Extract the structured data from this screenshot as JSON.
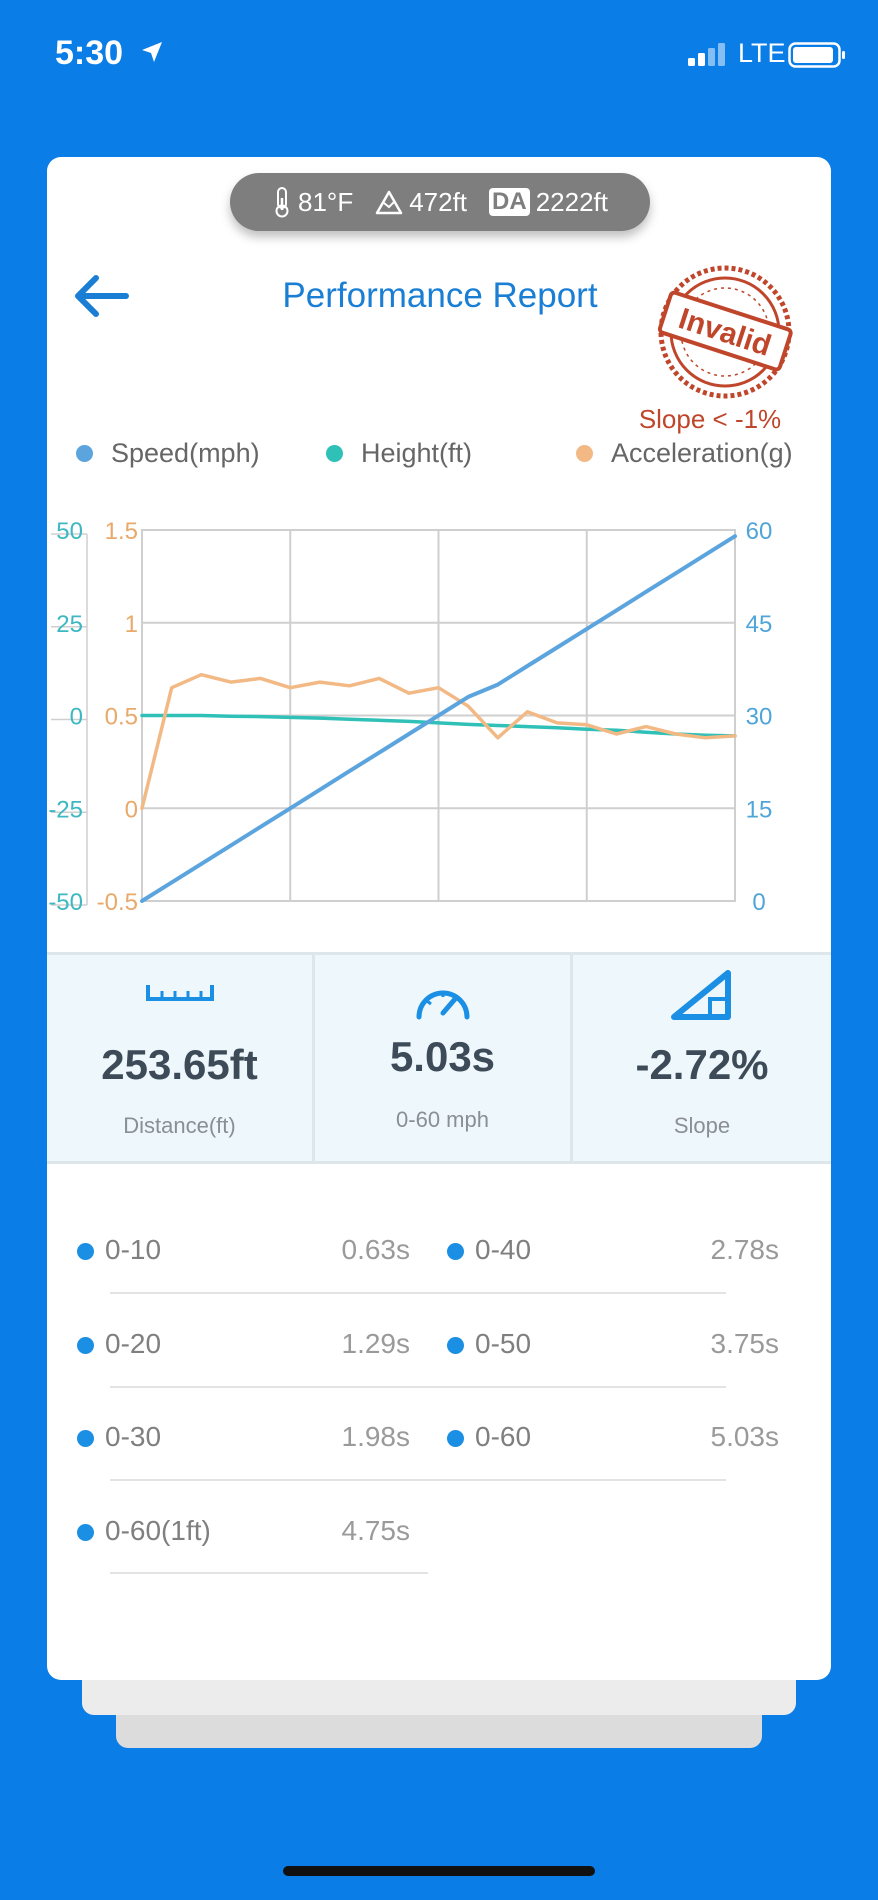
{
  "status_bar": {
    "time": "5:30",
    "network": "LTE"
  },
  "conditions": {
    "temperature": "81°F",
    "altitude": "472ft",
    "da_label": "DA",
    "density_altitude": "2222ft"
  },
  "header": {
    "title": "Performance Report",
    "stamp_text": "Invalid",
    "warning": "Slope < -1%"
  },
  "legend": [
    {
      "label": "Speed(mph)",
      "color": "#5ba4de"
    },
    {
      "label": "Height(ft)",
      "color": "#2fc0b8"
    },
    {
      "label": "Acceleration(g)",
      "color": "#f2b985"
    }
  ],
  "chart_data": {
    "type": "line",
    "x": [
      0,
      0.25,
      0.5,
      0.75,
      1.0,
      1.25,
      1.5,
      1.75,
      2.0,
      2.25,
      2.5,
      2.75,
      3.0,
      3.25,
      3.5,
      3.75,
      4.0,
      4.25,
      4.5,
      4.75,
      5.0
    ],
    "axes": {
      "height_left": {
        "ticks": [
          "50",
          "25",
          "0",
          "-25",
          "-50"
        ],
        "range": [
          -50,
          50
        ],
        "color": "#3db8c2"
      },
      "acceleration_left": {
        "ticks": [
          "1.5",
          "1",
          "0.5",
          "0",
          "-0.5"
        ],
        "range": [
          -0.5,
          1.5
        ],
        "color": "#e8a96a"
      },
      "speed_right": {
        "ticks": [
          "60",
          "45",
          "30",
          "15",
          "0"
        ],
        "range": [
          0,
          60
        ],
        "color": "#4fa5d8"
      }
    },
    "grid": true,
    "series": [
      {
        "name": "Speed(mph)",
        "axis": "speed_right",
        "color": "#5ba4de",
        "values": [
          0,
          3,
          6,
          9,
          12,
          15,
          18,
          21,
          24,
          27,
          30,
          33,
          35,
          38,
          41,
          44,
          47,
          50,
          53,
          56,
          59
        ]
      },
      {
        "name": "Height(ft)",
        "axis": "height_left",
        "color": "#2fc0b8",
        "values": [
          0,
          0,
          0,
          -0.2,
          -0.3,
          -0.5,
          -0.7,
          -1,
          -1.3,
          -1.6,
          -2,
          -2.4,
          -2.7,
          -3,
          -3.3,
          -3.7,
          -4,
          -4.5,
          -5,
          -5.3,
          -5.5
        ]
      },
      {
        "name": "Acceleration(g)",
        "axis": "acceleration_left",
        "color": "#f2b985",
        "values": [
          0,
          0.65,
          0.72,
          0.68,
          0.7,
          0.65,
          0.68,
          0.66,
          0.7,
          0.62,
          0.65,
          0.55,
          0.38,
          0.52,
          0.46,
          0.45,
          0.4,
          0.44,
          0.4,
          0.38,
          0.39
        ]
      }
    ]
  },
  "stats": [
    {
      "value": "253.65ft",
      "label": "Distance(ft)",
      "icon": "ruler-icon"
    },
    {
      "value": "5.03s",
      "label": "0-60 mph",
      "icon": "speedometer-icon"
    },
    {
      "value": "-2.72%",
      "label": "Slope",
      "icon": "slope-icon"
    }
  ],
  "splits": [
    {
      "name": "0-10",
      "time": "0.63s"
    },
    {
      "name": "0-40",
      "time": "2.78s"
    },
    {
      "name": "0-20",
      "time": "1.29s"
    },
    {
      "name": "0-50",
      "time": "3.75s"
    },
    {
      "name": "0-30",
      "time": "1.98s"
    },
    {
      "name": "0-60",
      "time": "5.03s"
    },
    {
      "name": "0-60(1ft)",
      "time": "4.75s"
    }
  ]
}
